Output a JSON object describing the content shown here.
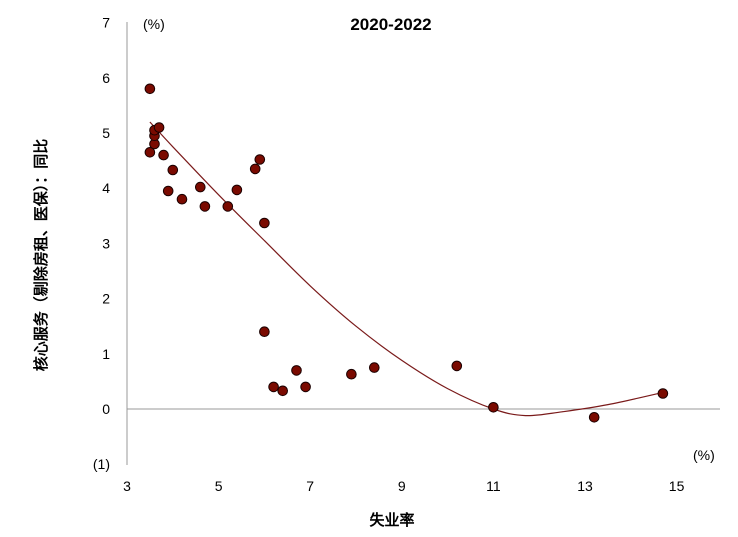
{
  "chart_data": {
    "type": "scatter",
    "title": "2020-2022",
    "xlabel": "失业率",
    "ylabel": "核心服务（剔除房租、医保）：同比",
    "x_unit": "(%)",
    "y_unit": "(%)",
    "xlim": [
      3,
      16
    ],
    "ylim": [
      -1,
      7
    ],
    "x_ticks": [
      3,
      5,
      7,
      9,
      11,
      13,
      15
    ],
    "y_ticks": [
      7,
      6,
      5,
      4,
      3,
      2,
      1,
      0,
      -1
    ],
    "y_tick_labels": [
      "7",
      "6",
      "5",
      "4",
      "3",
      "2",
      "1",
      "0",
      "(1)"
    ],
    "negative_tick_color": "#cc0000",
    "marker_fill": "#7a0a00",
    "marker_stroke": "#1a0000",
    "trend_color": "#7a1a1a",
    "grid": false,
    "legend": "none",
    "points": [
      {
        "x": 3.5,
        "y": 5.8
      },
      {
        "x": 3.5,
        "y": 4.65
      },
      {
        "x": 3.6,
        "y": 4.8
      },
      {
        "x": 3.6,
        "y": 4.95
      },
      {
        "x": 3.6,
        "y": 5.05
      },
      {
        "x": 3.7,
        "y": 5.1
      },
      {
        "x": 3.8,
        "y": 4.6
      },
      {
        "x": 3.9,
        "y": 3.95
      },
      {
        "x": 4.0,
        "y": 4.33
      },
      {
        "x": 4.2,
        "y": 3.8
      },
      {
        "x": 4.6,
        "y": 4.02
      },
      {
        "x": 4.7,
        "y": 3.67
      },
      {
        "x": 5.2,
        "y": 3.67
      },
      {
        "x": 5.4,
        "y": 3.97
      },
      {
        "x": 5.8,
        "y": 4.35
      },
      {
        "x": 5.9,
        "y": 4.52
      },
      {
        "x": 6.0,
        "y": 3.37
      },
      {
        "x": 6.0,
        "y": 1.4
      },
      {
        "x": 6.2,
        "y": 0.4
      },
      {
        "x": 6.4,
        "y": 0.33
      },
      {
        "x": 6.7,
        "y": 0.7
      },
      {
        "x": 6.9,
        "y": 0.4
      },
      {
        "x": 7.9,
        "y": 0.63
      },
      {
        "x": 8.4,
        "y": 0.75
      },
      {
        "x": 10.2,
        "y": 0.78
      },
      {
        "x": 11.0,
        "y": 0.03
      },
      {
        "x": 13.2,
        "y": -0.15
      },
      {
        "x": 14.7,
        "y": 0.28
      }
    ],
    "trend": {
      "type": "polynomial-2",
      "x": [
        3.5,
        4.0,
        5.0,
        6.0,
        7.0,
        8.0,
        9.0,
        10.0,
        11.0,
        11.7,
        12.5,
        13.5,
        14.7
      ],
      "y": [
        5.2,
        4.75,
        3.88,
        3.05,
        2.23,
        1.5,
        0.88,
        0.37,
        0.0,
        -0.12,
        -0.05,
        0.08,
        0.3
      ]
    }
  }
}
